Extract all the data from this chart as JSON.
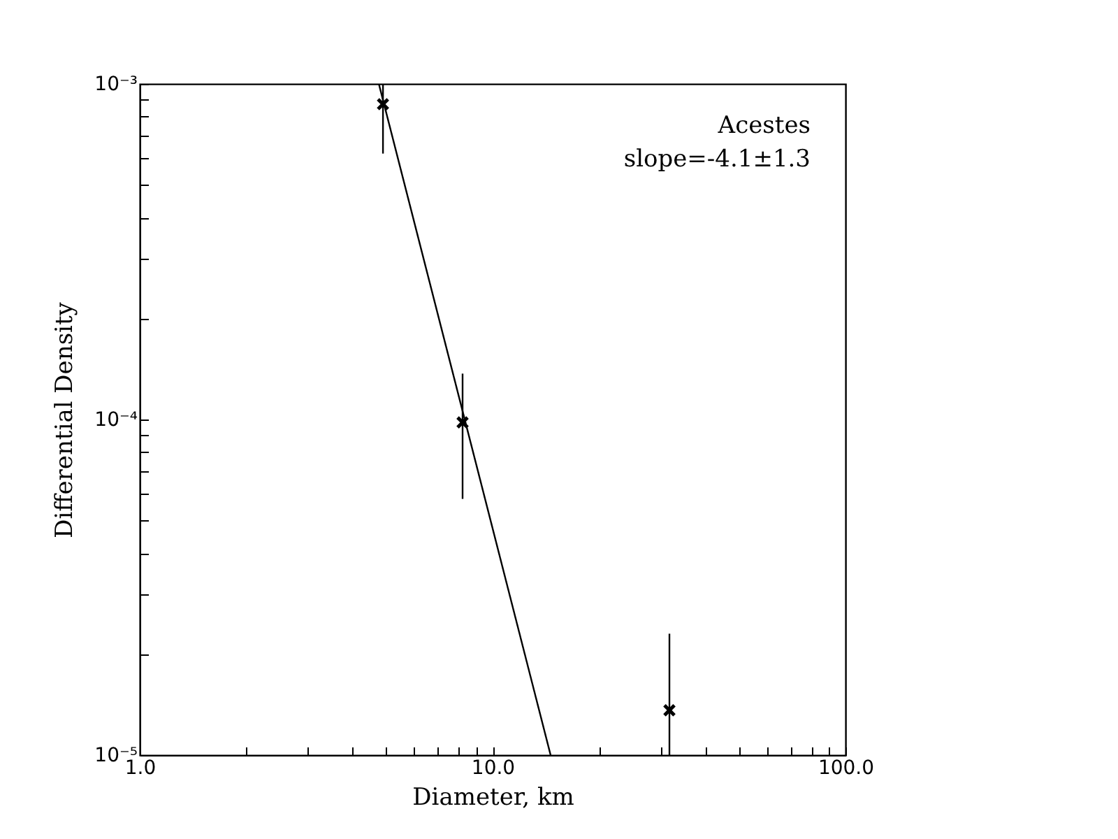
{
  "chart_data": {
    "type": "scatter",
    "xlabel": "Diameter, km",
    "ylabel": "Differential Density",
    "annotations": [
      "Acestes",
      "slope=-4.1±1.3"
    ],
    "log": "xy",
    "grid": false,
    "xlim": [
      1,
      100
    ],
    "ylim": [
      1e-05,
      0.001
    ],
    "xticks": [
      {
        "value": 1,
        "label": "1.0"
      },
      {
        "value": 2,
        "label": null
      },
      {
        "value": 3,
        "label": null
      },
      {
        "value": 4,
        "label": null
      },
      {
        "value": 5,
        "label": null
      },
      {
        "value": 6,
        "label": null
      },
      {
        "value": 7,
        "label": null
      },
      {
        "value": 8,
        "label": null
      },
      {
        "value": 9,
        "label": null
      },
      {
        "value": 10,
        "label": "10.0"
      },
      {
        "value": 20,
        "label": null
      },
      {
        "value": 30,
        "label": null
      },
      {
        "value": 40,
        "label": null
      },
      {
        "value": 50,
        "label": null
      },
      {
        "value": 60,
        "label": null
      },
      {
        "value": 70,
        "label": null
      },
      {
        "value": 80,
        "label": null
      },
      {
        "value": 90,
        "label": null
      },
      {
        "value": 100,
        "label": "100.0"
      }
    ],
    "yticks": [
      {
        "value": 1e-05,
        "label": "10⁻⁵"
      },
      {
        "value": 2e-05,
        "label": null
      },
      {
        "value": 3e-05,
        "label": null
      },
      {
        "value": 4e-05,
        "label": null
      },
      {
        "value": 5e-05,
        "label": null
      },
      {
        "value": 6e-05,
        "label": null
      },
      {
        "value": 7e-05,
        "label": null
      },
      {
        "value": 8e-05,
        "label": null
      },
      {
        "value": 9e-05,
        "label": null
      },
      {
        "value": 0.0001,
        "label": "10⁻⁴"
      },
      {
        "value": 0.0002,
        "label": null
      },
      {
        "value": 0.0003,
        "label": null
      },
      {
        "value": 0.0004,
        "label": null
      },
      {
        "value": 0.0005,
        "label": null
      },
      {
        "value": 0.0006,
        "label": null
      },
      {
        "value": 0.0007,
        "label": null
      },
      {
        "value": 0.0008,
        "label": null
      },
      {
        "value": 0.0009,
        "label": null
      },
      {
        "value": 0.001,
        "label": "10⁻³"
      }
    ],
    "series": [
      {
        "type": "scatter",
        "color": "#000000",
        "marker": "cross",
        "x": [
          4.89,
          8.22,
          31.7
        ],
        "values": [
          0.00087,
          9.8e-05,
          1.36e-05
        ],
        "errors": [
          [
            0.00062,
            0.001
          ],
          [
            5.8e-05,
            0.000137
          ],
          [
            1e-05,
            2.3e-05
          ]
        ]
      },
      {
        "type": "line",
        "color": "#000000",
        "marker": "none",
        "line_style": "solid",
        "x": [
          4.76,
          14.6
        ],
        "values": [
          0.001,
          1e-05
        ]
      }
    ]
  }
}
